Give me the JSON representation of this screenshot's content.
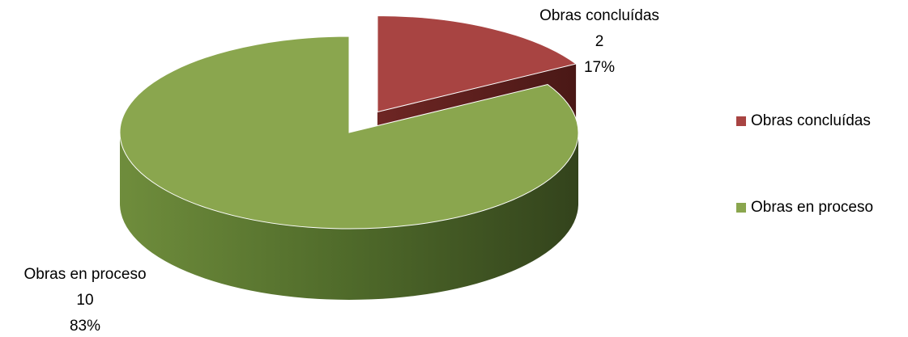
{
  "chart_data": {
    "type": "pie3d",
    "categories": [
      "Obras concluídas",
      "Obras en proceso"
    ],
    "values": [
      2,
      10
    ],
    "percent_labels": [
      "17%",
      "83%"
    ],
    "colors": [
      "#a84442",
      "#8aa64e"
    ],
    "explode": [
      true,
      false
    ],
    "legend": "right"
  }
}
